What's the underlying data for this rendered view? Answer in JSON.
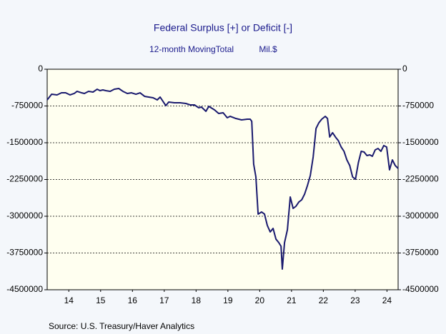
{
  "chart_data": {
    "type": "line",
    "title": "Federal Surplus [+] or Deficit [-]",
    "subtitle": "12-month MovingTotal",
    "units": "Mil.$",
    "source": "Source:  U.S. Treasury/Haver Analytics",
    "xlim": [
      13.82,
      24.85
    ],
    "xticks": [
      {
        "value": 14.5,
        "label": "14"
      },
      {
        "value": 15.5,
        "label": "15"
      },
      {
        "value": 16.5,
        "label": "16"
      },
      {
        "value": 17.5,
        "label": "17"
      },
      {
        "value": 18.5,
        "label": "18"
      },
      {
        "value": 19.5,
        "label": "19"
      },
      {
        "value": 20.5,
        "label": "20"
      },
      {
        "value": 21.5,
        "label": "21"
      },
      {
        "value": 22.5,
        "label": "22"
      },
      {
        "value": 23.5,
        "label": "23"
      },
      {
        "value": 24.5,
        "label": "24"
      }
    ],
    "ylim": [
      -4500000,
      0
    ],
    "yticks": [
      0,
      -750000,
      -1500000,
      -2250000,
      -3000000,
      -3750000,
      -4500000
    ],
    "grid": true,
    "series": [
      {
        "name": "Federal Surplus [+] or Deficit [-]",
        "color": "#1a1a6e",
        "x": [
          13.82,
          13.96,
          14.13,
          14.27,
          14.4,
          14.54,
          14.67,
          14.76,
          14.9,
          14.99,
          15.12,
          15.26,
          15.39,
          15.48,
          15.57,
          15.66,
          15.8,
          15.93,
          16.07,
          16.2,
          16.34,
          16.47,
          16.61,
          16.74,
          16.88,
          17.01,
          17.15,
          17.28,
          17.37,
          17.55,
          17.64,
          17.82,
          18.0,
          18.18,
          18.31,
          18.45,
          18.58,
          18.67,
          18.81,
          18.9,
          19.08,
          19.21,
          19.35,
          19.48,
          19.57,
          19.75,
          19.93,
          20.11,
          20.2,
          20.25,
          20.31,
          20.38,
          20.45,
          20.56,
          20.65,
          20.74,
          20.83,
          20.92,
          21.01,
          21.1,
          21.17,
          21.21,
          21.28,
          21.37,
          21.46,
          21.55,
          21.64,
          21.73,
          21.82,
          21.91,
          22.0,
          22.09,
          22.18,
          22.27,
          22.36,
          22.45,
          22.56,
          22.63,
          22.7,
          22.79,
          22.88,
          22.97,
          23.06,
          23.15,
          23.24,
          23.33,
          23.42,
          23.51,
          23.6,
          23.69,
          23.78,
          23.87,
          23.96,
          24.04,
          24.13,
          24.22,
          24.31,
          24.4,
          24.49,
          24.58,
          24.67,
          24.76,
          24.85
        ],
        "values": [
          -626000,
          -510000,
          -524000,
          -481000,
          -481000,
          -524000,
          -495000,
          -451000,
          -481000,
          -495000,
          -451000,
          -466000,
          -408000,
          -437000,
          -422000,
          -437000,
          -451000,
          -408000,
          -393000,
          -451000,
          -495000,
          -481000,
          -510000,
          -481000,
          -553000,
          -568000,
          -583000,
          -626000,
          -568000,
          -743000,
          -670000,
          -684000,
          -684000,
          -699000,
          -728000,
          -728000,
          -786000,
          -772000,
          -859000,
          -757000,
          -830000,
          -903000,
          -888000,
          -990000,
          -961000,
          -1005000,
          -1034000,
          -1019000,
          -1019000,
          -1063000,
          -1937000,
          -2199000,
          -2956000,
          -2913000,
          -2956000,
          -3189000,
          -3320000,
          -3248000,
          -3466000,
          -3539000,
          -3612000,
          -4078000,
          -3539000,
          -3277000,
          -2607000,
          -2840000,
          -2796000,
          -2709000,
          -2665000,
          -2549000,
          -2374000,
          -2170000,
          -1791000,
          -1209000,
          -1092000,
          -1019000,
          -961000,
          -1005000,
          -1383000,
          -1296000,
          -1383000,
          -1456000,
          -1587000,
          -1675000,
          -1850000,
          -1966000,
          -2199000,
          -2243000,
          -1908000,
          -1675000,
          -1689000,
          -1762000,
          -1748000,
          -1777000,
          -1646000,
          -1617000,
          -1675000,
          -1558000,
          -1587000,
          -2053000,
          -1850000,
          -1966000,
          -2024000
        ]
      }
    ]
  }
}
